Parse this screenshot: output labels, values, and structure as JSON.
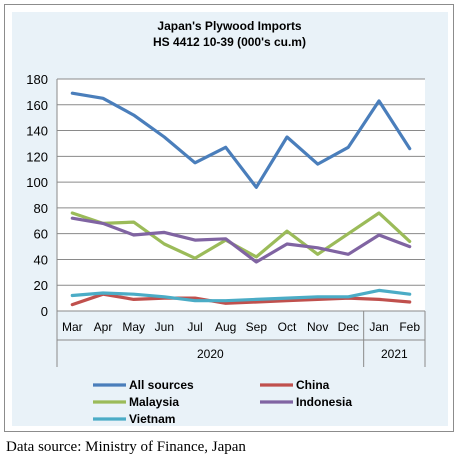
{
  "chart_data": {
    "type": "line",
    "title": "Japan's Plywood Imports",
    "subtitle": "HS 4412 10-39  (000's cu.m)",
    "categories": [
      "Mar",
      "Apr",
      "May",
      "Jun",
      "Jul",
      "Aug",
      "Sep",
      "Oct",
      "Nov",
      "Dec",
      "Jan",
      "Feb"
    ],
    "year_groups": [
      {
        "label": "2020",
        "start": 0,
        "end": 9
      },
      {
        "label": "2021",
        "start": 10,
        "end": 11
      }
    ],
    "ylim": [
      0,
      180
    ],
    "yticks": [
      0,
      20,
      40,
      60,
      80,
      100,
      120,
      140,
      160,
      180
    ],
    "grid": true,
    "legend_position": "bottom",
    "series": [
      {
        "name": "All sources",
        "color": "#4a7ebb",
        "values": [
          169,
          165,
          152,
          135,
          115,
          127,
          96,
          135,
          114,
          127,
          163,
          126
        ]
      },
      {
        "name": "China",
        "color": "#c0504d",
        "values": [
          5,
          13,
          9,
          10,
          10,
          6,
          7,
          8,
          9,
          10,
          9,
          7
        ]
      },
      {
        "name": "Malaysia",
        "color": "#9bbb59",
        "values": [
          76,
          68,
          69,
          52,
          41,
          55,
          42,
          62,
          44,
          60,
          76,
          54
        ]
      },
      {
        "name": "Indonesia",
        "color": "#8064a2",
        "values": [
          72,
          68,
          59,
          61,
          55,
          56,
          38,
          52,
          49,
          44,
          59,
          50
        ]
      },
      {
        "name": "Vietnam",
        "color": "#4bacc6",
        "values": [
          12,
          14,
          13,
          11,
          8,
          8,
          9,
          10,
          11,
          11,
          16,
          13
        ]
      }
    ]
  },
  "source_note": "Data source: Ministry of Finance, Japan"
}
